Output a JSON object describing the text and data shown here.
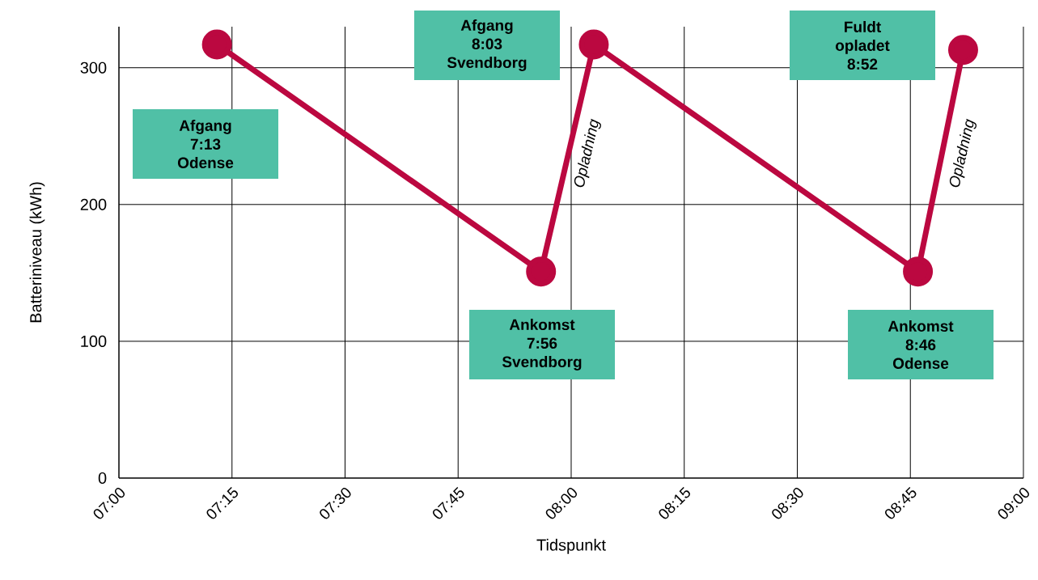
{
  "chart_data": {
    "type": "line",
    "xlabel": "Tidspunkt",
    "ylabel": "Batteriniveau (kWh)",
    "x": [
      7.2167,
      7.9333,
      8.05,
      8.7667,
      8.8667
    ],
    "series": [
      {
        "color": "#bb0840",
        "values": [
          317,
          151,
          317,
          151,
          313
        ]
      }
    ],
    "xlim": [
      7,
      9
    ],
    "ylim": [
      0,
      330
    ],
    "xticks": [
      {
        "value": 7,
        "label": "07:00"
      },
      {
        "value": 7.25,
        "label": "07:15"
      },
      {
        "value": 7.5,
        "label": "07:30"
      },
      {
        "value": 7.75,
        "label": "07:45"
      },
      {
        "value": 8,
        "label": "08:00"
      },
      {
        "value": 8.25,
        "label": "08:15"
      },
      {
        "value": 8.5,
        "label": "08:30"
      },
      {
        "value": 8.75,
        "label": "08:45"
      },
      {
        "value": 9,
        "label": "09:00"
      }
    ],
    "yticks": [
      0,
      100,
      200,
      300
    ],
    "grid": true,
    "marker": "circle",
    "line_style": "solid",
    "annotations": [
      "Afgang 7:13 Odense",
      "Afgang 8:03 Svendborg",
      "Ankomst 7:56 Svendborg",
      "Fuldt opladet 8:52",
      "Ankomst 8:46 Odense",
      "Opladning",
      "Opladning"
    ]
  }
}
